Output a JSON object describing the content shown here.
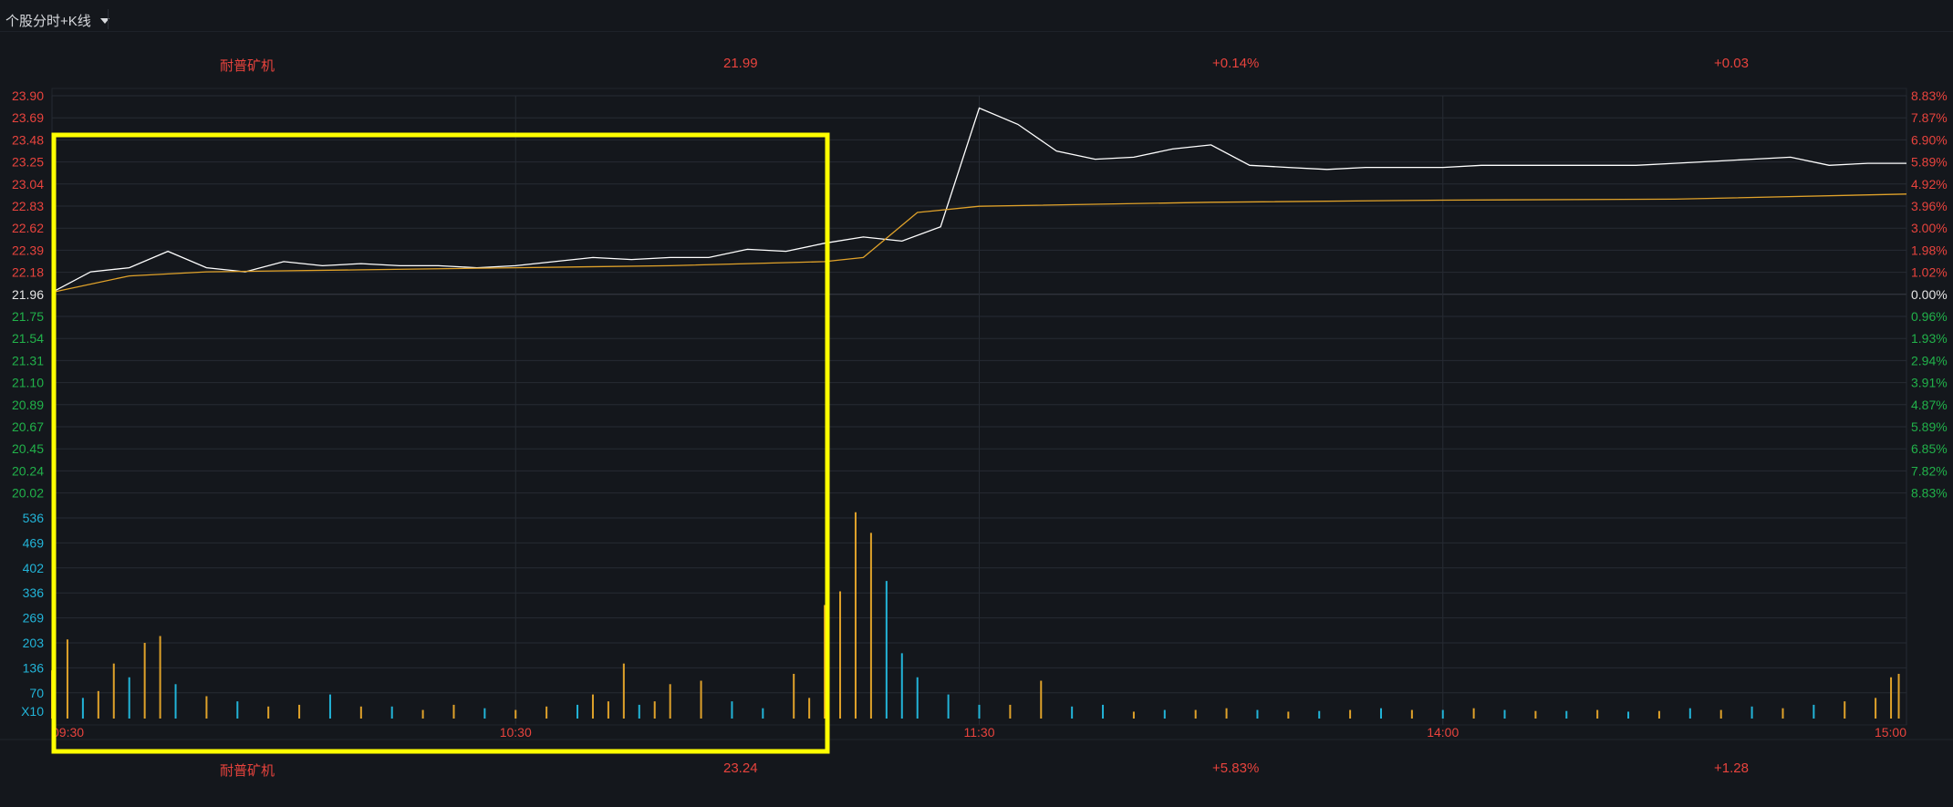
{
  "toolbar": {
    "mode_label": "个股分时+K线"
  },
  "header": {
    "name": "耐普矿机",
    "price": "21.99",
    "change_pct": "+0.14%",
    "change": "+0.03"
  },
  "footer": {
    "name": "耐普矿机",
    "price": "23.24",
    "change_pct": "+5.83%",
    "change": "+1.28"
  },
  "colors": {
    "up": "#e8433d",
    "down": "#21b24a",
    "price_line": "#ffffff",
    "avg_line": "#e0a22a",
    "volume_up": "#e0a22a",
    "volume_down": "#22b4d8",
    "highlight": "#ffff00",
    "grid": "#262b33"
  },
  "chart_data": {
    "type": "line",
    "price_axis_left": [
      "23.90",
      "23.69",
      "23.48",
      "23.25",
      "23.04",
      "22.83",
      "22.62",
      "22.39",
      "22.18",
      "21.96",
      "21.75",
      "21.54",
      "21.31",
      "21.10",
      "20.89",
      "20.67",
      "20.45",
      "20.24",
      "20.02"
    ],
    "price_axis_right": [
      "8.83%",
      "7.87%",
      "6.90%",
      "5.89%",
      "4.92%",
      "3.96%",
      "3.00%",
      "1.98%",
      "1.02%",
      "0.00%",
      "0.96%",
      "1.93%",
      "2.94%",
      "3.91%",
      "4.87%",
      "5.89%",
      "6.85%",
      "7.82%",
      "8.83%"
    ],
    "volume_axis": [
      "536",
      "469",
      "402",
      "336",
      "269",
      "203",
      "136",
      "70"
    ],
    "volume_unit": "X10",
    "time_labels": [
      "09:30",
      "10:30",
      "11:30",
      "14:00",
      "15:00"
    ],
    "prev_close": 21.96,
    "price_range": [
      20.02,
      23.9
    ],
    "volume_range": [
      0,
      603
    ],
    "series": [
      {
        "name": "price",
        "x": [
          0,
          5,
          10,
          15,
          20,
          25,
          30,
          35,
          40,
          45,
          50,
          55,
          60,
          65,
          70,
          75,
          80,
          85,
          90,
          95,
          100,
          105,
          110,
          115,
          120,
          125,
          130,
          135,
          140,
          145,
          150,
          155,
          160,
          165,
          170,
          175,
          180,
          185,
          190,
          195,
          200,
          205,
          210,
          215,
          220,
          225,
          230,
          235,
          240
        ],
        "y": [
          21.98,
          22.18,
          22.22,
          22.38,
          22.22,
          22.18,
          22.28,
          22.24,
          22.26,
          22.24,
          22.24,
          22.22,
          22.24,
          22.28,
          22.32,
          22.3,
          22.32,
          22.32,
          22.4,
          22.38,
          22.46,
          22.52,
          22.48,
          22.62,
          23.78,
          23.62,
          23.36,
          23.28,
          23.3,
          23.38,
          23.42,
          23.22,
          23.2,
          23.18,
          23.2,
          23.2,
          23.2,
          23.22,
          23.22,
          23.22,
          23.22,
          23.22,
          23.24,
          23.26,
          23.28,
          23.3,
          23.22,
          23.24,
          23.24
        ]
      },
      {
        "name": "avg",
        "x": [
          0,
          10,
          20,
          40,
          60,
          80,
          90,
          100,
          105,
          112,
          120,
          150,
          180,
          210,
          240
        ],
        "y": [
          21.98,
          22.14,
          22.18,
          22.2,
          22.22,
          22.24,
          22.26,
          22.28,
          22.32,
          22.76,
          22.82,
          22.86,
          22.88,
          22.89,
          22.94
        ]
      }
    ],
    "volume": {
      "x": [
        0,
        2,
        4,
        6,
        8,
        10,
        12,
        14,
        16,
        20,
        24,
        28,
        32,
        36,
        40,
        44,
        48,
        52,
        56,
        60,
        64,
        68,
        70,
        72,
        74,
        76,
        78,
        80,
        84,
        88,
        92,
        96,
        98,
        100,
        102,
        104,
        106,
        108,
        110,
        112,
        116,
        120,
        124,
        128,
        132,
        136,
        140,
        144,
        148,
        152,
        156,
        160,
        164,
        168,
        172,
        176,
        180,
        184,
        188,
        192,
        196,
        200,
        204,
        208,
        212,
        216,
        220,
        224,
        228,
        232,
        236,
        238,
        239
      ],
      "v": [
        140,
        230,
        60,
        80,
        160,
        120,
        220,
        240,
        100,
        65,
        50,
        35,
        40,
        70,
        35,
        35,
        25,
        40,
        30,
        25,
        35,
        40,
        70,
        50,
        160,
        40,
        50,
        100,
        110,
        50,
        30,
        130,
        60,
        330,
        370,
        600,
        540,
        400,
        190,
        120,
        70,
        40,
        40,
        110,
        35,
        40,
        20,
        25,
        25,
        30,
        25,
        20,
        22,
        25,
        30,
        25,
        25,
        30,
        25,
        22,
        22,
        25,
        20,
        22,
        30,
        25,
        35,
        30,
        40,
        50,
        60,
        120,
        130
      ],
      "dir": [
        "u",
        "u",
        "d",
        "u",
        "u",
        "d",
        "u",
        "u",
        "d",
        "u",
        "d",
        "u",
        "u",
        "d",
        "u",
        "d",
        "u",
        "u",
        "d",
        "u",
        "u",
        "d",
        "u",
        "u",
        "u",
        "d",
        "u",
        "u",
        "u",
        "d",
        "d",
        "u",
        "u",
        "u",
        "u",
        "u",
        "u",
        "d",
        "d",
        "d",
        "d",
        "d",
        "u",
        "u",
        "d",
        "d",
        "u",
        "d",
        "u",
        "u",
        "d",
        "u",
        "d",
        "u",
        "d",
        "u",
        "d",
        "u",
        "d",
        "u",
        "d",
        "u",
        "d",
        "u",
        "d",
        "u",
        "d",
        "u",
        "d",
        "u",
        "u",
        "u",
        "u"
      ]
    }
  }
}
